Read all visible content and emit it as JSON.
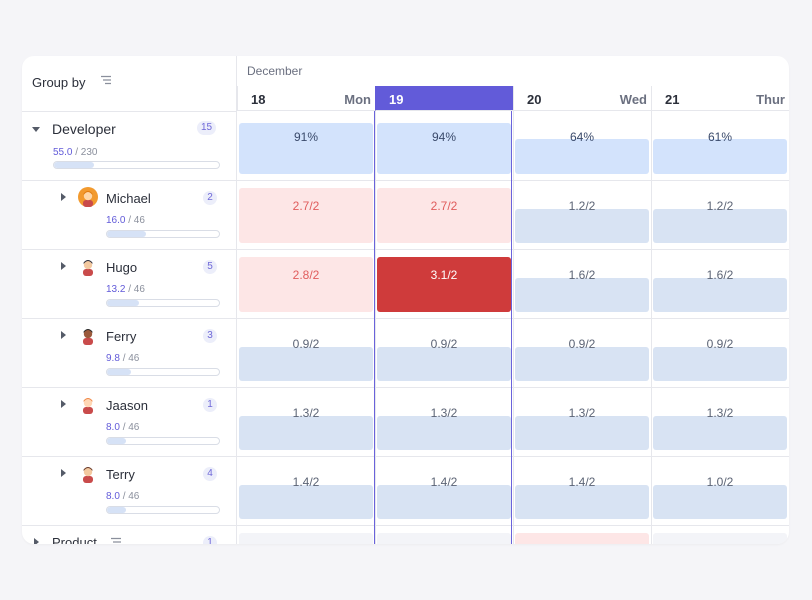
{
  "header": {
    "group_by_label": "Group by",
    "month": "December",
    "days": [
      {
        "num": "18",
        "dow": "Mon",
        "selected": false
      },
      {
        "num": "19",
        "dow": "",
        "selected": true
      },
      {
        "num": "20",
        "dow": "Wed",
        "selected": false
      },
      {
        "num": "21",
        "dow": "Thur",
        "selected": false
      }
    ]
  },
  "groups": [
    {
      "name": "Developer",
      "count": "15",
      "stat_value": "55.0",
      "stat_total": "/ 230",
      "progress": 0.24,
      "cells": [
        "91%",
        "94%",
        "64%",
        "61%"
      ]
    }
  ],
  "people": [
    {
      "name": "Michael",
      "count": "2",
      "stat_value": "16.0",
      "stat_total": "/ 46",
      "progress": 0.35,
      "avatar": "avatar-michael-icon",
      "cells": [
        {
          "text": "2.7/2",
          "state": "over"
        },
        {
          "text": "2.7/2",
          "state": "over"
        },
        {
          "text": "1.2/2",
          "state": "normal"
        },
        {
          "text": "1.2/2",
          "state": "normal"
        }
      ]
    },
    {
      "name": "Hugo",
      "count": "5",
      "stat_value": "13.2",
      "stat_total": "/ 46",
      "progress": 0.29,
      "avatar": "avatar-hugo-icon",
      "cells": [
        {
          "text": "2.8/2",
          "state": "over"
        },
        {
          "text": "3.1/2",
          "state": "critical"
        },
        {
          "text": "1.6/2",
          "state": "normal"
        },
        {
          "text": "1.6/2",
          "state": "normal"
        }
      ]
    },
    {
      "name": "Ferry",
      "count": "3",
      "stat_value": "9.8",
      "stat_total": "/ 46",
      "progress": 0.21,
      "avatar": "avatar-ferry-icon",
      "cells": [
        {
          "text": "0.9/2",
          "state": "normal"
        },
        {
          "text": "0.9/2",
          "state": "normal"
        },
        {
          "text": "0.9/2",
          "state": "normal"
        },
        {
          "text": "0.9/2",
          "state": "normal"
        }
      ]
    },
    {
      "name": "Jaason",
      "count": "1",
      "stat_value": "8.0",
      "stat_total": "/ 46",
      "progress": 0.17,
      "avatar": "avatar-jaason-icon",
      "cells": [
        {
          "text": "1.3/2",
          "state": "normal"
        },
        {
          "text": "1.3/2",
          "state": "normal"
        },
        {
          "text": "1.3/2",
          "state": "normal"
        },
        {
          "text": "1.3/2",
          "state": "normal"
        }
      ]
    },
    {
      "name": "Terry",
      "count": "4",
      "stat_value": "8.0",
      "stat_total": "/ 46",
      "progress": 0.17,
      "avatar": "avatar-terry-icon",
      "cells": [
        {
          "text": "1.4/2",
          "state": "normal"
        },
        {
          "text": "1.4/2",
          "state": "normal"
        },
        {
          "text": "1.4/2",
          "state": "normal"
        },
        {
          "text": "1.0/2",
          "state": "normal"
        }
      ]
    }
  ],
  "next_group": {
    "name": "Product",
    "count": "1"
  },
  "colors": {
    "accent": "#625bd9",
    "group_cell": "#d3e3fc",
    "normal_cell": "#d8e3f3",
    "over_cell": "#fde6e6",
    "over_text": "#e05c5c",
    "critical_cell": "#cf3b3b"
  }
}
